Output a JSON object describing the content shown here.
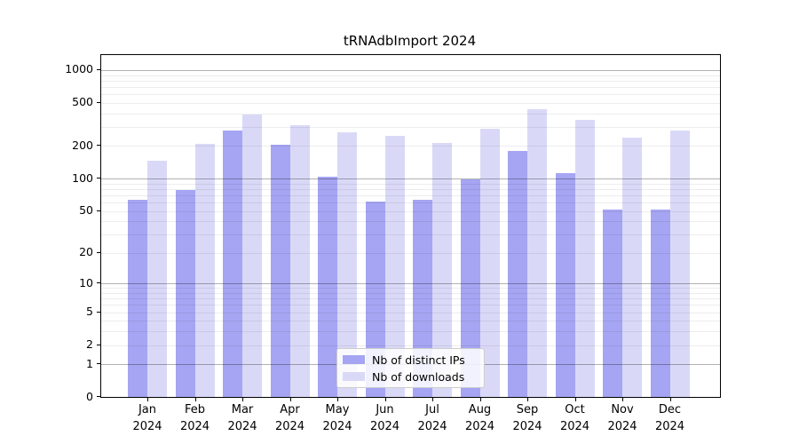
{
  "chart_data": {
    "type": "bar",
    "title": "tRNAdbImport 2024",
    "months": [
      "Jan",
      "Feb",
      "Mar",
      "Apr",
      "May",
      "Jun",
      "Jul",
      "Aug",
      "Sep",
      "Oct",
      "Nov",
      "Dec"
    ],
    "year_label": "2024",
    "categories": [
      "Jan 2024",
      "Feb 2024",
      "Mar 2024",
      "Apr 2024",
      "May 2024",
      "Jun 2024",
      "Jul 2024",
      "Aug 2024",
      "Sep 2024",
      "Oct 2024",
      "Nov 2024",
      "Dec 2024"
    ],
    "series": [
      {
        "name": "Nb of distinct IPs",
        "color": "#a5a5f3",
        "values": [
          63,
          78,
          278,
          205,
          105,
          61,
          64,
          98,
          180,
          112,
          51,
          51
        ]
      },
      {
        "name": "Nb of downloads",
        "color": "#d9d9f7",
        "values": [
          146,
          208,
          387,
          309,
          269,
          247,
          213,
          287,
          440,
          346,
          237,
          278
        ]
      }
    ],
    "y_axis": {
      "scale": "log1p",
      "ticks": [
        0,
        1,
        2,
        5,
        10,
        20,
        50,
        100,
        200,
        500,
        1000
      ],
      "major_gridlines": [
        1,
        10,
        100,
        1000
      ],
      "minor_gridline_decades": [
        1,
        10,
        100
      ],
      "range_top": 1370
    },
    "xlabel": "",
    "ylabel": "",
    "grid": "on",
    "legend_position": "bottom-center",
    "colors": {
      "frame": "#000000",
      "background": "#ffffff",
      "text": "#000000"
    }
  }
}
